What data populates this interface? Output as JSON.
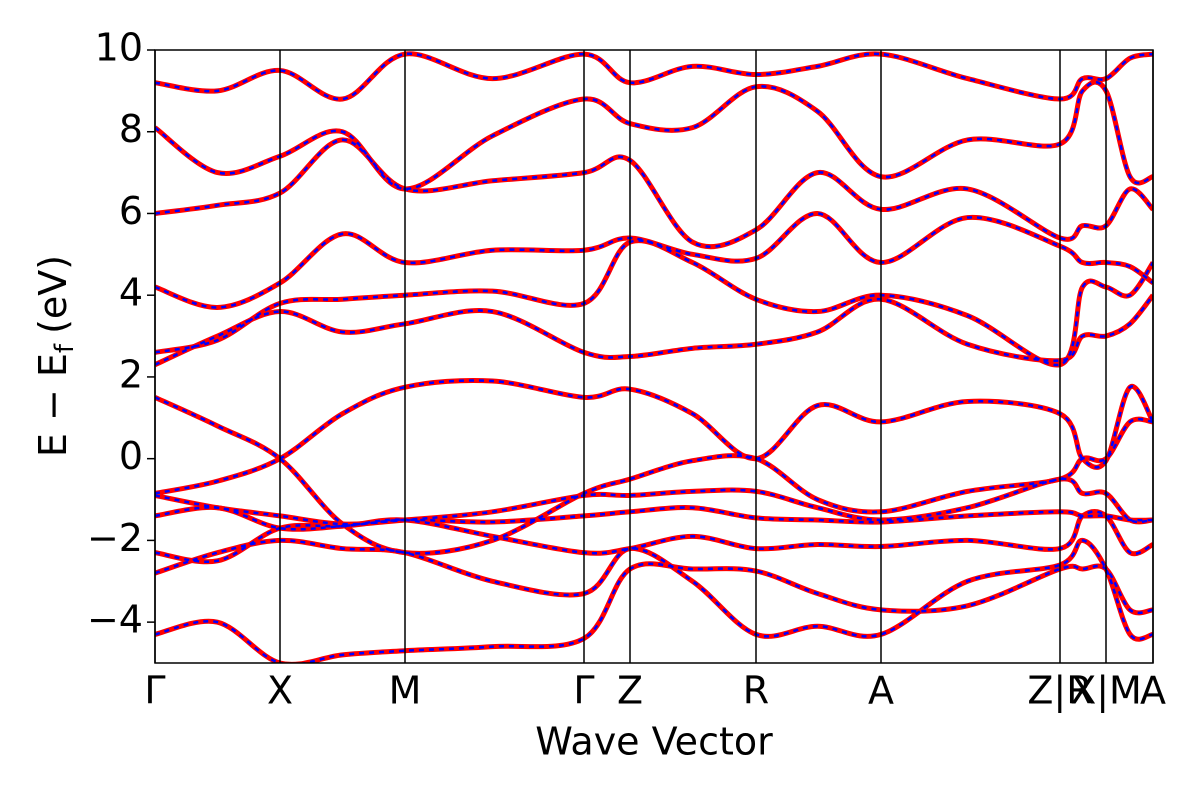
{
  "chart_data": {
    "type": "band-structure",
    "x_label": "Wave Vector",
    "y_label": {
      "main": "E − E",
      "sub": "f",
      "unit": "(eV)"
    },
    "xlim": [
      0,
      7.984
    ],
    "xticks": [
      {
        "value": 0,
        "label": "Γ"
      },
      {
        "value": 1.0,
        "label": "X"
      },
      {
        "value": 2.0,
        "label": "M"
      },
      {
        "value": 3.432,
        "label": "Γ"
      },
      {
        "value": 3.8,
        "label": "Z"
      },
      {
        "value": 4.808,
        "label": "R"
      },
      {
        "value": 5.808,
        "label": "A"
      },
      {
        "value": 7.24,
        "label": "Z|R"
      },
      {
        "value": 7.608,
        "label": "X|M"
      },
      {
        "value": 7.984,
        "label": "A"
      }
    ],
    "ylim": [
      -5,
      10
    ],
    "yticks": [
      {
        "value": -4,
        "label": "−4"
      },
      {
        "value": -2,
        "label": "−2"
      },
      0,
      2,
      4,
      6,
      8,
      10
    ],
    "x": [
      0,
      0.5,
      1.0,
      1.5,
      2.0,
      2.7,
      3.432,
      3.8,
      4.3,
      4.808,
      5.3,
      5.808,
      6.5,
      7.24,
      7.42,
      7.608,
      7.8,
      7.984
    ],
    "series": [
      {
        "color": "#ff0000",
        "dashed": false,
        "bands": [
          {
            "values": [
              -4.3,
              -4.0,
              -5.0,
              -4.8,
              -4.7,
              -4.6,
              -4.4,
              -2.7,
              -2.7,
              -2.75,
              -3.3,
              -3.7,
              -3.6,
              -2.7,
              -2.7,
              -2.7,
              -3.7,
              -3.7
            ]
          },
          {
            "values": [
              -2.8,
              -2.3,
              -2.0,
              -2.2,
              -2.3,
              -3.0,
              -3.3,
              -2.2,
              -3.0,
              -4.3,
              -4.1,
              -4.3,
              -3.0,
              -2.6,
              -2.0,
              -2.7,
              -4.3,
              -4.3
            ]
          },
          {
            "values": [
              -2.3,
              -2.5,
              -1.7,
              -1.65,
              -1.5,
              -1.9,
              -2.3,
              -2.2,
              -1.9,
              -2.2,
              -2.1,
              -2.15,
              -2.0,
              -2.2,
              -1.4,
              -1.4,
              -2.3,
              -2.1
            ]
          },
          {
            "values": [
              -1.4,
              -1.2,
              -1.7,
              -1.65,
              -1.5,
              -1.55,
              -1.4,
              -1.3,
              -1.2,
              -1.45,
              -1.5,
              -1.55,
              -1.4,
              -1.3,
              -1.4,
              -1.4,
              -1.5,
              -1.5
            ]
          },
          {
            "values": [
              -0.9,
              -1.2,
              -1.4,
              -1.6,
              -1.5,
              -1.3,
              -0.9,
              -0.9,
              -0.8,
              -0.8,
              -1.2,
              -1.5,
              -1.2,
              -0.5,
              -0.85,
              -0.85,
              -1.5,
              -1.5
            ]
          },
          {
            "values": [
              -0.85,
              -0.55,
              0,
              1.1,
              1.75,
              1.9,
              1.5,
              1.7,
              1.1,
              0,
              1.3,
              0.9,
              1.4,
              1.1,
              0,
              -0.05,
              1.75,
              0.9
            ]
          },
          {
            "values": [
              1.5,
              0.8,
              0,
              -1.6,
              -2.3,
              -2.0,
              -0.85,
              -0.5,
              -0.05,
              0,
              -1.0,
              -1.3,
              -0.8,
              -0.5,
              0,
              0,
              0.9,
              0.9
            ]
          },
          {
            "values": [
              2.3,
              3.0,
              3.6,
              3.1,
              3.3,
              3.6,
              2.6,
              2.5,
              2.7,
              2.8,
              3.1,
              3.9,
              2.8,
              2.4,
              3.0,
              3.0,
              3.3,
              4.0
            ]
          },
          {
            "values": [
              2.6,
              2.9,
              3.8,
              3.9,
              4.0,
              4.1,
              3.8,
              5.3,
              4.8,
              3.9,
              3.6,
              4.0,
              3.5,
              2.3,
              4.2,
              4.2,
              4.0,
              4.8
            ]
          },
          {
            "values": [
              4.2,
              3.7,
              4.3,
              5.5,
              4.8,
              5.1,
              5.1,
              5.4,
              5.0,
              4.9,
              6.0,
              4.8,
              5.9,
              5.2,
              4.8,
              4.8,
              4.7,
              4.3
            ]
          },
          {
            "values": [
              6.0,
              6.2,
              6.5,
              7.8,
              6.6,
              6.8,
              7.0,
              7.3,
              5.3,
              5.6,
              7.0,
              6.1,
              6.6,
              5.4,
              5.7,
              5.7,
              6.6,
              6.1
            ]
          },
          {
            "values": [
              8.1,
              7.0,
              7.4,
              8.0,
              6.6,
              7.9,
              8.8,
              8.2,
              8.1,
              9.1,
              8.5,
              6.9,
              7.8,
              7.7,
              9.0,
              9.0,
              6.9,
              6.9
            ]
          },
          {
            "values": [
              9.2,
              9.0,
              9.5,
              8.8,
              9.9,
              9.3,
              9.9,
              9.2,
              9.6,
              9.4,
              9.6,
              9.9,
              9.3,
              8.8,
              9.3,
              9.3,
              9.8,
              9.9
            ]
          }
        ]
      },
      {
        "color": "#0000ff",
        "dashed": true,
        "bands": [
          {
            "values": [
              -4.3,
              -4.0,
              -5.0,
              -4.8,
              -4.7,
              -4.6,
              -4.4,
              -2.7,
              -2.7,
              -2.75,
              -3.3,
              -3.7,
              -3.6,
              -2.7,
              -2.7,
              -2.7,
              -3.7,
              -3.7
            ]
          },
          {
            "values": [
              -2.8,
              -2.3,
              -2.0,
              -2.2,
              -2.3,
              -3.0,
              -3.3,
              -2.2,
              -3.0,
              -4.3,
              -4.1,
              -4.3,
              -3.0,
              -2.6,
              -2.0,
              -2.7,
              -4.3,
              -4.3
            ]
          },
          {
            "values": [
              -2.3,
              -2.5,
              -1.7,
              -1.65,
              -1.5,
              -1.9,
              -2.3,
              -2.2,
              -1.9,
              -2.2,
              -2.1,
              -2.15,
              -2.0,
              -2.2,
              -1.4,
              -1.4,
              -2.3,
              -2.1
            ]
          },
          {
            "values": [
              -1.4,
              -1.2,
              -1.7,
              -1.65,
              -1.5,
              -1.55,
              -1.4,
              -1.3,
              -1.2,
              -1.45,
              -1.5,
              -1.55,
              -1.4,
              -1.3,
              -1.4,
              -1.4,
              -1.5,
              -1.5
            ]
          },
          {
            "values": [
              -0.9,
              -1.2,
              -1.4,
              -1.6,
              -1.5,
              -1.3,
              -0.9,
              -0.9,
              -0.8,
              -0.8,
              -1.2,
              -1.5,
              -1.2,
              -0.5,
              -0.85,
              -0.85,
              -1.5,
              -1.5
            ]
          },
          {
            "values": [
              -0.85,
              -0.55,
              0,
              1.1,
              1.75,
              1.9,
              1.5,
              1.7,
              1.1,
              0,
              1.3,
              0.9,
              1.4,
              1.1,
              0,
              -0.05,
              1.75,
              0.9
            ]
          },
          {
            "values": [
              1.5,
              0.8,
              0,
              -1.6,
              -2.3,
              -2.0,
              -0.85,
              -0.5,
              -0.05,
              0,
              -1.0,
              -1.3,
              -0.8,
              -0.5,
              0,
              0,
              0.9,
              0.9
            ]
          },
          {
            "values": [
              2.3,
              3.0,
              3.6,
              3.1,
              3.3,
              3.6,
              2.6,
              2.5,
              2.7,
              2.8,
              3.1,
              3.9,
              2.8,
              2.4,
              3.0,
              3.0,
              3.3,
              4.0
            ]
          },
          {
            "values": [
              2.6,
              2.9,
              3.8,
              3.9,
              4.0,
              4.1,
              3.8,
              5.3,
              4.8,
              3.9,
              3.6,
              4.0,
              3.5,
              2.3,
              4.2,
              4.2,
              4.0,
              4.8
            ]
          },
          {
            "values": [
              4.2,
              3.7,
              4.3,
              5.5,
              4.8,
              5.1,
              5.1,
              5.4,
              5.0,
              4.9,
              6.0,
              4.8,
              5.9,
              5.2,
              4.8,
              4.8,
              4.7,
              4.3
            ]
          },
          {
            "values": [
              6.0,
              6.2,
              6.5,
              7.8,
              6.6,
              6.8,
              7.0,
              7.3,
              5.3,
              5.6,
              7.0,
              6.1,
              6.6,
              5.4,
              5.7,
              5.7,
              6.6,
              6.1
            ]
          },
          {
            "values": [
              8.1,
              7.0,
              7.4,
              8.0,
              6.6,
              7.9,
              8.8,
              8.2,
              8.1,
              9.1,
              8.5,
              6.9,
              7.8,
              7.7,
              9.0,
              9.0,
              6.9,
              6.9
            ]
          },
          {
            "values": [
              9.2,
              9.0,
              9.5,
              8.8,
              9.9,
              9.3,
              9.9,
              9.2,
              9.6,
              9.4,
              9.6,
              9.9,
              9.3,
              8.8,
              9.3,
              9.3,
              9.8,
              9.9
            ]
          }
        ]
      }
    ]
  }
}
